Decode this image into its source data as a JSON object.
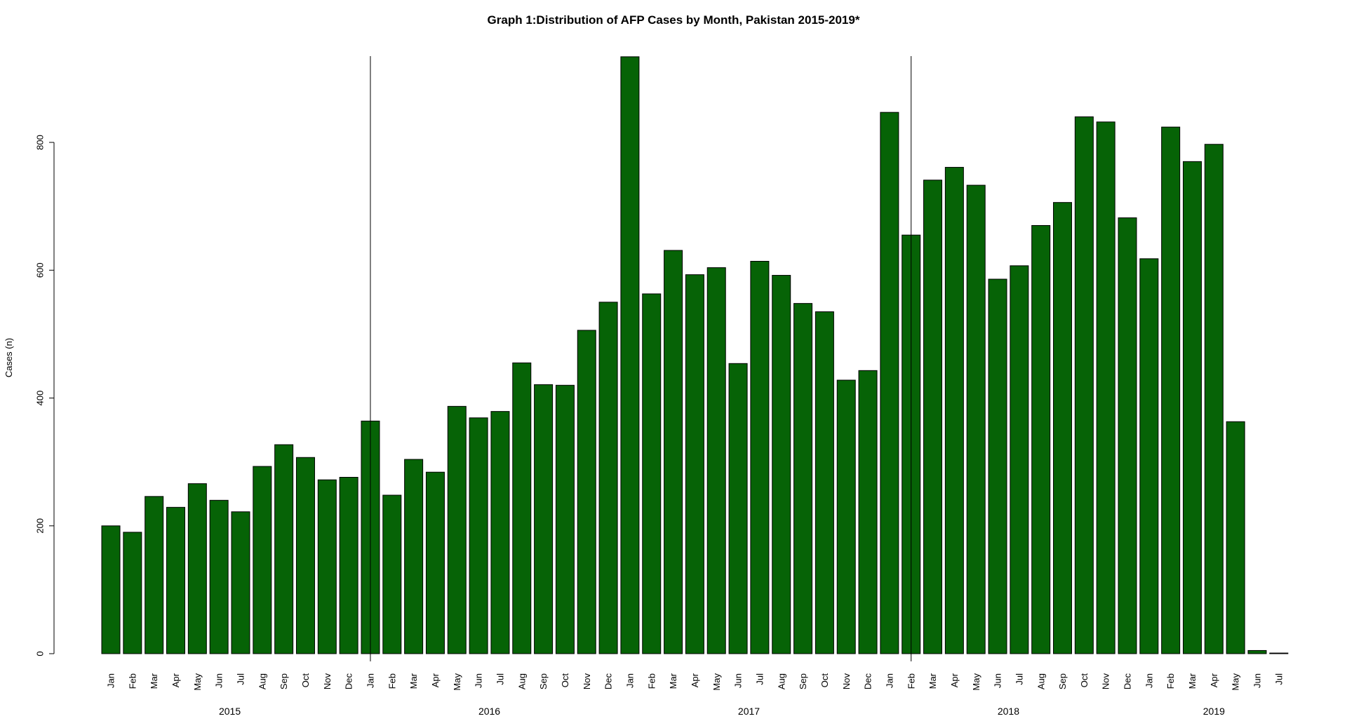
{
  "chart_data": {
    "type": "bar",
    "title": "Graph 1:Distribution of AFP Cases by Month, Pakistan 2015-2019*",
    "ylabel": "Cases (n)",
    "xlabel": "",
    "ylim": [
      0,
      935
    ],
    "yticks": [
      0,
      200,
      400,
      600,
      800
    ],
    "bar_color": "#066306",
    "categories": [
      "Jan",
      "Feb",
      "Mar",
      "Apr",
      "May",
      "Jun",
      "Jul",
      "Aug",
      "Sep",
      "Oct",
      "Nov",
      "Dec",
      "Jan",
      "Feb",
      "Mar",
      "Apr",
      "May",
      "Jun",
      "Jul",
      "Aug",
      "Sep",
      "Oct",
      "Nov",
      "Dec",
      "Jan",
      "Feb",
      "Mar",
      "Apr",
      "May",
      "Jun",
      "Jul",
      "Aug",
      "Sep",
      "Oct",
      "Nov",
      "Dec",
      "Jan",
      "Feb",
      "Mar",
      "Apr",
      "May",
      "Jun",
      "Jul",
      "Aug",
      "Sep",
      "Oct",
      "Nov",
      "Dec",
      "Jan",
      "Feb",
      "Mar",
      "Apr",
      "May",
      "Jun",
      "Jul"
    ],
    "values": [
      200,
      190,
      246,
      229,
      266,
      240,
      222,
      293,
      327,
      307,
      272,
      276,
      364,
      248,
      304,
      284,
      387,
      369,
      379,
      455,
      421,
      420,
      506,
      550,
      934,
      563,
      631,
      593,
      604,
      454,
      614,
      592,
      548,
      535,
      428,
      443,
      847,
      655,
      741,
      761,
      733,
      586,
      607,
      670,
      706,
      840,
      832,
      682,
      618,
      824,
      770,
      797,
      363,
      5,
      1
    ],
    "years": [
      "2015",
      "2016",
      "2017",
      "2018",
      "2019"
    ],
    "year_groups": [
      {
        "label": "2015",
        "start": 0,
        "end": 11
      },
      {
        "label": "2016",
        "start": 12,
        "end": 23
      },
      {
        "label": "2017",
        "start": 24,
        "end": 35
      },
      {
        "label": "2018",
        "start": 36,
        "end": 47
      },
      {
        "label": "2019",
        "start": 48,
        "end": 54
      }
    ],
    "vertical_markers": [
      12,
      37
    ]
  }
}
